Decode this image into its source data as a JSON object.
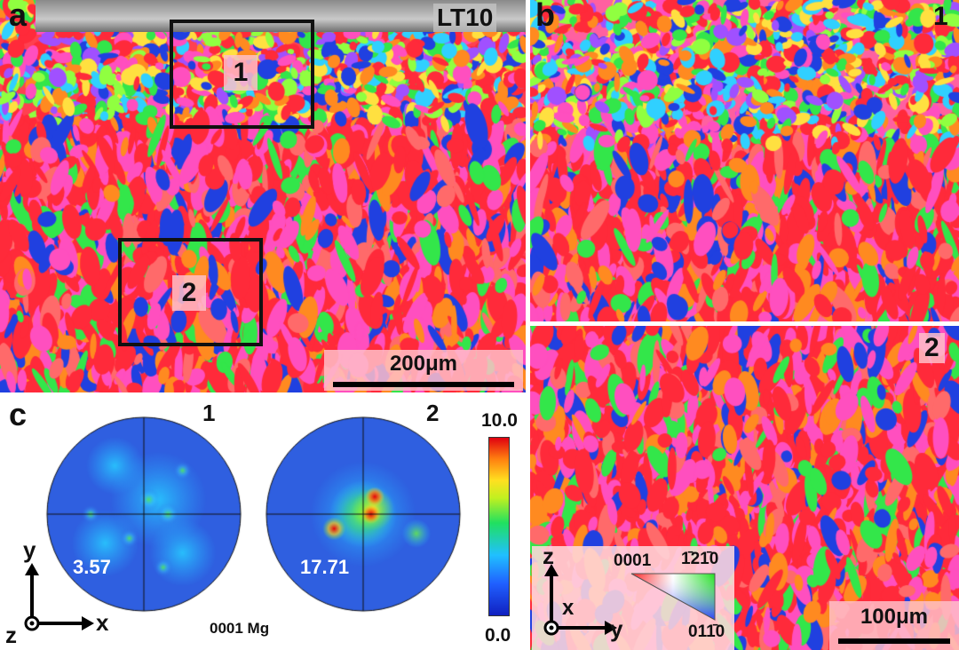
{
  "panel_a": {
    "label": "a",
    "sample": "LT10",
    "region1": "1",
    "region2": "2",
    "scalebar": "200μm"
  },
  "panel_b": {
    "label": "b",
    "top_label": "1",
    "bottom_label": "2",
    "scalebar": "100μm"
  },
  "panel_c": {
    "label": "c",
    "pf1": {
      "label": "1",
      "max": "3.57"
    },
    "pf2": {
      "label": "2",
      "max": "17.71"
    },
    "colorbar": {
      "max": "10.0",
      "min": "0.0"
    },
    "caption": "0001 Mg",
    "axes": {
      "y": "y",
      "x": "x",
      "z": "z"
    }
  },
  "ipf_key": {
    "axes": {
      "z": "z",
      "x": "x",
      "y": "y"
    },
    "corner_0001": "0001",
    "corner_1210": "1̄21̄0",
    "corner_0110": "011̄0"
  },
  "colors": {
    "red": "#ff2a3a",
    "green": "#33e64a",
    "blue": "#2040e0",
    "pink": "#ff4fbf",
    "orange": "#ff8a20"
  }
}
